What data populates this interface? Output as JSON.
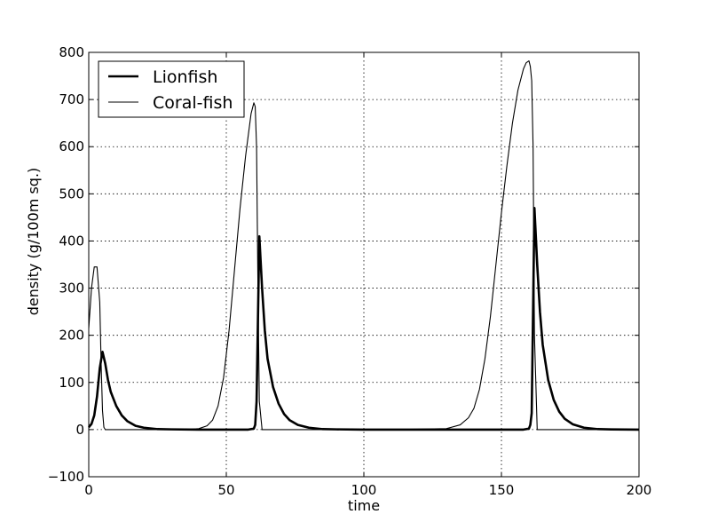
{
  "chart_data": {
    "type": "line",
    "title": "",
    "xlabel": "time",
    "ylabel": "density (g/100m sq.)",
    "xlim": [
      0,
      200
    ],
    "ylim": [
      -100,
      800
    ],
    "xticks": [
      0,
      50,
      100,
      150,
      200
    ],
    "yticks": [
      -100,
      0,
      100,
      200,
      300,
      400,
      500,
      600,
      700,
      800
    ],
    "xtick_labels": [
      "0",
      "50",
      "100",
      "150",
      "200"
    ],
    "ytick_labels": [
      "−100",
      "0",
      "100",
      "200",
      "300",
      "400",
      "500",
      "600",
      "700",
      "800"
    ],
    "grid": true,
    "legend_position": "top-left",
    "series": [
      {
        "name": "Lionfish",
        "style": "thick",
        "color": "#000000",
        "x": [
          0,
          1,
          2,
          3,
          4,
          5,
          6,
          7,
          8,
          10,
          12,
          14,
          17,
          20,
          25,
          30,
          40,
          50,
          58,
          60,
          60.5,
          61,
          62,
          63,
          64,
          65,
          67,
          69,
          71,
          73,
          76,
          80,
          85,
          90,
          100,
          120,
          140,
          150,
          158,
          160,
          160.5,
          161,
          162,
          163,
          164,
          165,
          167,
          169,
          171,
          173,
          176,
          180,
          185,
          190,
          200
        ],
        "y": [
          5,
          12,
          30,
          70,
          130,
          165,
          140,
          105,
          80,
          50,
          30,
          18,
          8,
          4,
          1,
          0.5,
          0,
          0,
          0,
          2,
          10,
          60,
          410,
          300,
          210,
          150,
          90,
          55,
          33,
          20,
          10,
          4,
          1,
          0.5,
          0,
          0,
          0,
          0,
          0,
          2,
          10,
          35,
          470,
          350,
          250,
          180,
          105,
          63,
          38,
          23,
          11,
          4,
          1,
          0.3,
          0
        ]
      },
      {
        "name": "Coral-fish",
        "style": "thin",
        "color": "#000000",
        "x": [
          0,
          1,
          2,
          3,
          4,
          4.5,
          5,
          5.5,
          6,
          7,
          10,
          20,
          30,
          35,
          40,
          43,
          45,
          47,
          49,
          51,
          53,
          55,
          57,
          59,
          60,
          60.5,
          61,
          61.5,
          62,
          63,
          70,
          90,
          110,
          130,
          135,
          138,
          140,
          142,
          144,
          146,
          148,
          150,
          152,
          154,
          156,
          158,
          159,
          160,
          160.5,
          161,
          161.5,
          162,
          163,
          170,
          200
        ],
        "y": [
          215,
          300,
          345,
          345,
          270,
          140,
          40,
          5,
          0,
          0,
          0,
          0,
          0,
          0,
          2,
          8,
          20,
          50,
          110,
          210,
          340,
          470,
          580,
          670,
          693,
          685,
          600,
          300,
          60,
          0,
          0,
          0,
          0,
          2,
          10,
          25,
          45,
          85,
          150,
          240,
          350,
          460,
          560,
          650,
          720,
          765,
          778,
          782,
          770,
          740,
          600,
          200,
          0,
          0,
          0
        ]
      }
    ]
  }
}
